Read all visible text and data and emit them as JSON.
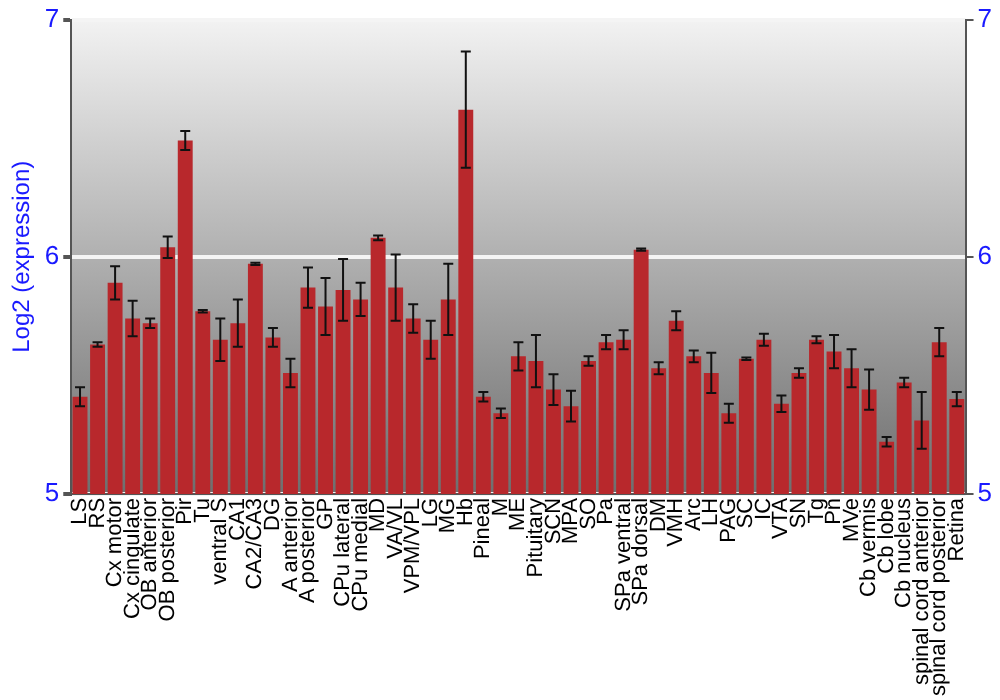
{
  "chart_data": {
    "type": "bar",
    "ylabel": "Log2 (expression)",
    "categories": [
      "LS",
      "RS",
      "Cx motor",
      "Cx cingulate",
      "OB anterior",
      "OB posterior",
      "Pir",
      "Tu",
      "ventral S",
      "CA1",
      "CA2/CA3",
      "DG",
      "A anterior",
      "A posterior",
      "GP",
      "CPu lateral",
      "CPu medial",
      "MD",
      "VA/VL",
      "VPM/VPL",
      "LG",
      "MG",
      "Hb",
      "Pineal",
      "M",
      "ME",
      "Pituitary",
      "SCN",
      "MPA",
      "SO",
      "Pa",
      "SPa ventral",
      "SPa dorsal",
      "DM",
      "VMH",
      "Arc",
      "LH",
      "PAG",
      "SC",
      "IC",
      "VTA",
      "SN",
      "Tg",
      "Pn",
      "MVe",
      "Cb vermis",
      "Cb lobe",
      "Cb nucleus",
      "spinal cord anterior",
      "spinal cord posterior",
      "Retina"
    ],
    "values": [
      5.41,
      5.63,
      5.89,
      5.74,
      5.72,
      6.04,
      6.49,
      5.77,
      5.65,
      5.72,
      5.97,
      5.66,
      5.51,
      5.87,
      5.79,
      5.86,
      5.82,
      6.08,
      5.87,
      5.74,
      5.65,
      5.82,
      6.62,
      5.41,
      5.34,
      5.58,
      5.56,
      5.44,
      5.37,
      5.56,
      5.64,
      5.65,
      6.03,
      5.53,
      5.73,
      5.58,
      5.51,
      5.34,
      5.57,
      5.65,
      5.38,
      5.51,
      5.65,
      5.6,
      5.53,
      5.44,
      5.22,
      5.47,
      5.31,
      5.64,
      5.4
    ],
    "errors": [
      0.04,
      0.01,
      0.07,
      0.075,
      0.02,
      0.045,
      0.04,
      0.005,
      0.09,
      0.1,
      0.005,
      0.04,
      0.06,
      0.085,
      0.12,
      0.13,
      0.07,
      0.01,
      0.14,
      0.06,
      0.08,
      0.15,
      0.245,
      0.02,
      0.02,
      0.06,
      0.11,
      0.065,
      0.065,
      0.02,
      0.03,
      0.04,
      0.005,
      0.025,
      0.04,
      0.025,
      0.085,
      0.04,
      0.005,
      0.025,
      0.035,
      0.02,
      0.015,
      0.07,
      0.08,
      0.085,
      0.02,
      0.02,
      0.12,
      0.06,
      0.03
    ],
    "color": "#b8282c",
    "ylim": [
      5,
      7
    ],
    "yticks": [
      5,
      6,
      7
    ],
    "y2lim": [
      5,
      7
    ],
    "y2ticks": [
      5,
      6,
      7
    ],
    "grid": "y",
    "legend": false
  }
}
